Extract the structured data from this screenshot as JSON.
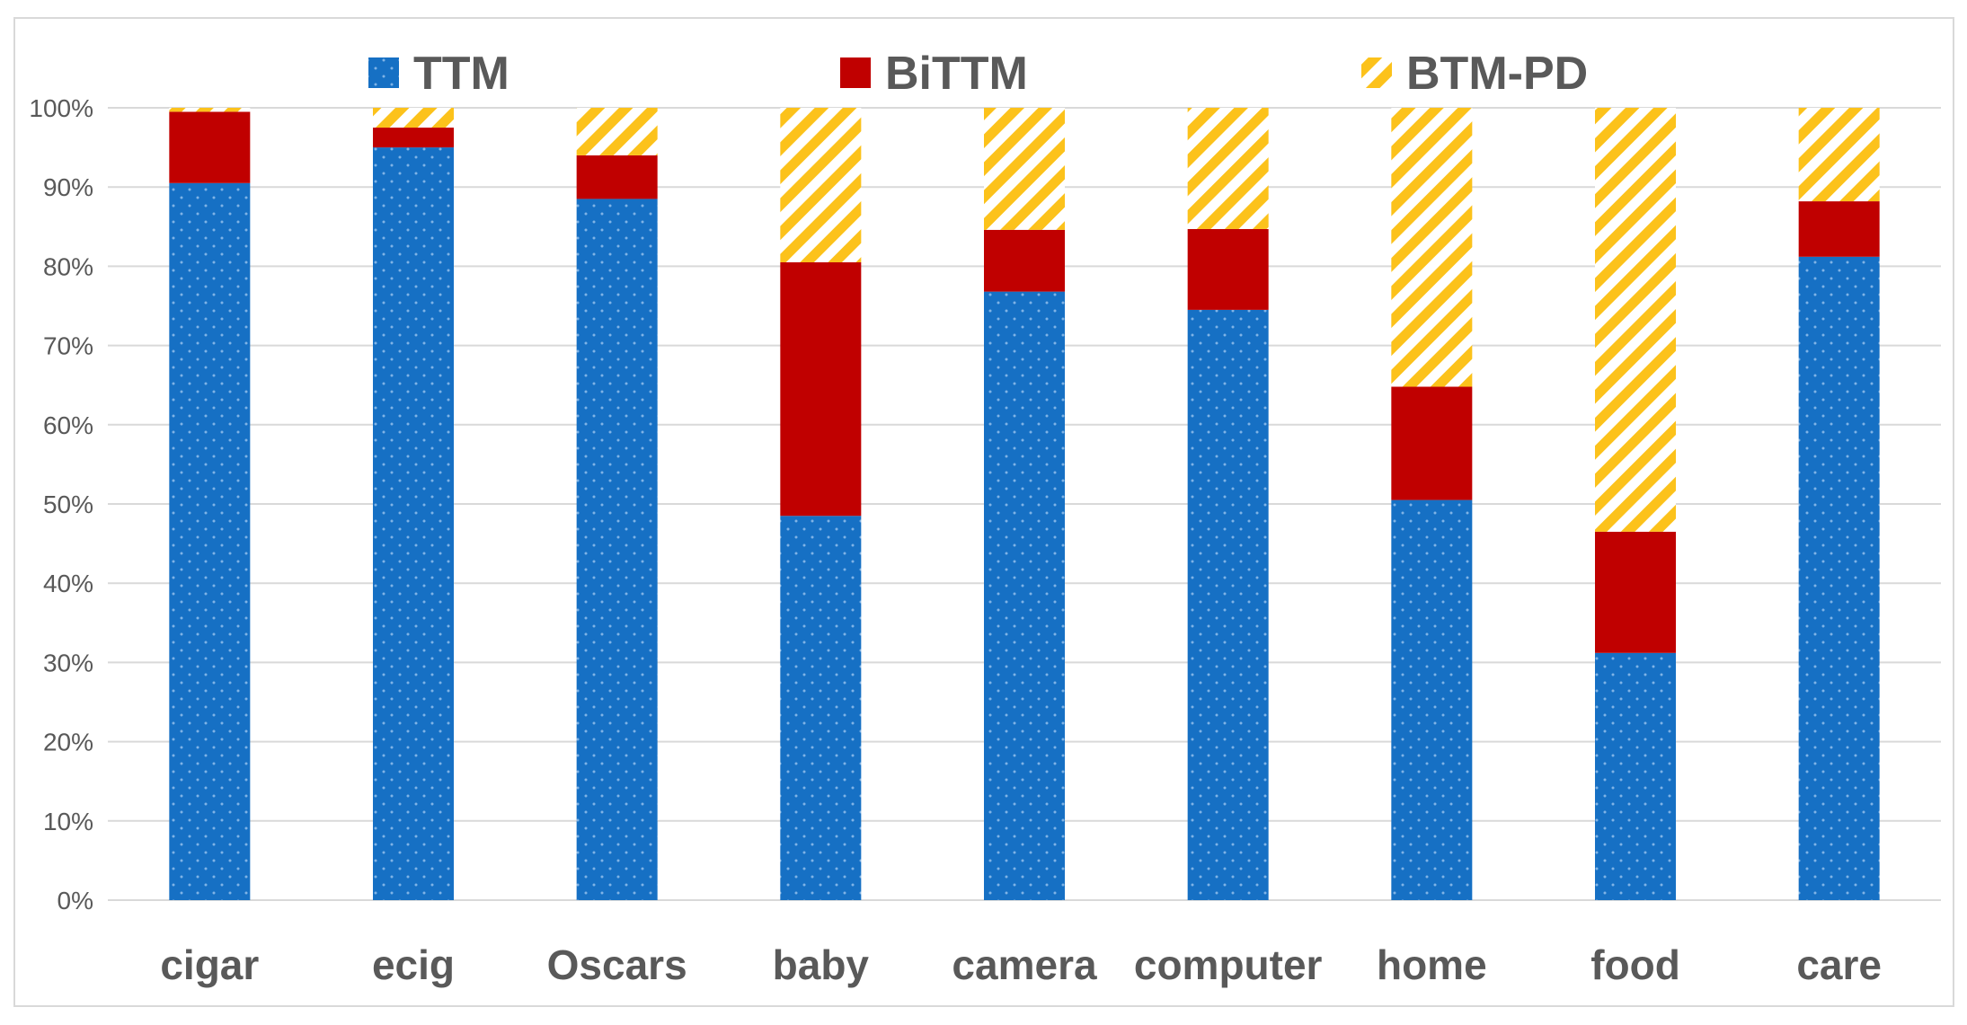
{
  "chart_data": {
    "type": "bar",
    "stacked": true,
    "percent": true,
    "categories": [
      "cigar",
      "ecig",
      "Oscars",
      "baby",
      "camera",
      "computer",
      "home",
      "food",
      "care"
    ],
    "series": [
      {
        "name": "TTM",
        "values": [
          90.5,
          95.0,
          88.5,
          48.5,
          76.8,
          74.5,
          50.5,
          31.2,
          81.2
        ]
      },
      {
        "name": "BiTTM",
        "values": [
          9.0,
          2.5,
          5.5,
          32.0,
          7.8,
          10.2,
          14.3,
          15.3,
          7.0
        ]
      },
      {
        "name": "BTM-PD",
        "values": [
          0.5,
          2.5,
          6.0,
          19.5,
          15.4,
          15.3,
          35.2,
          53.5,
          11.8
        ]
      }
    ],
    "y_ticks": [
      "0%",
      "10%",
      "20%",
      "30%",
      "40%",
      "50%",
      "60%",
      "70%",
      "80%",
      "90%",
      "100%"
    ],
    "ylim": [
      0,
      100
    ],
    "grid": true,
    "legend_position": "top",
    "colors": {
      "TTM": "#1670c4",
      "BiTTM": "#c00000",
      "BTM-PD": "#fcc21b",
      "grid": "#d9d9d9",
      "axis_text": "#595959"
    }
  }
}
